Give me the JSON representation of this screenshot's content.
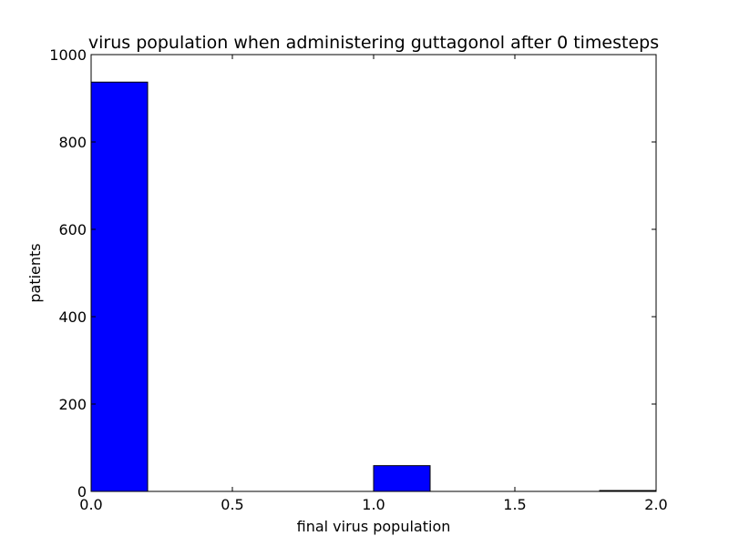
{
  "chart_data": {
    "type": "bar",
    "title": "virus population when administering guttagonol after 0 timesteps",
    "xlabel": "final virus population",
    "ylabel": "patients",
    "xlim": [
      0.0,
      2.0
    ],
    "ylim": [
      0,
      1000
    ],
    "bar_color": "#0000ff",
    "bins": [
      {
        "x0": 0.0,
        "x1": 0.2,
        "value": 937
      },
      {
        "x0": 1.0,
        "x1": 1.2,
        "value": 59
      },
      {
        "x0": 1.8,
        "x1": 2.0,
        "value": 2
      }
    ],
    "x_ticks": [
      {
        "value": 0.0,
        "label": "0.0"
      },
      {
        "value": 0.5,
        "label": "0.5"
      },
      {
        "value": 1.0,
        "label": "1.0"
      },
      {
        "value": 1.5,
        "label": "1.5"
      },
      {
        "value": 2.0,
        "label": "2.0"
      }
    ],
    "y_ticks": [
      {
        "value": 0,
        "label": "0"
      },
      {
        "value": 200,
        "label": "200"
      },
      {
        "value": 400,
        "label": "400"
      },
      {
        "value": 600,
        "label": "600"
      },
      {
        "value": 800,
        "label": "800"
      },
      {
        "value": 1000,
        "label": "1000"
      }
    ],
    "grid": false,
    "legend": false
  }
}
